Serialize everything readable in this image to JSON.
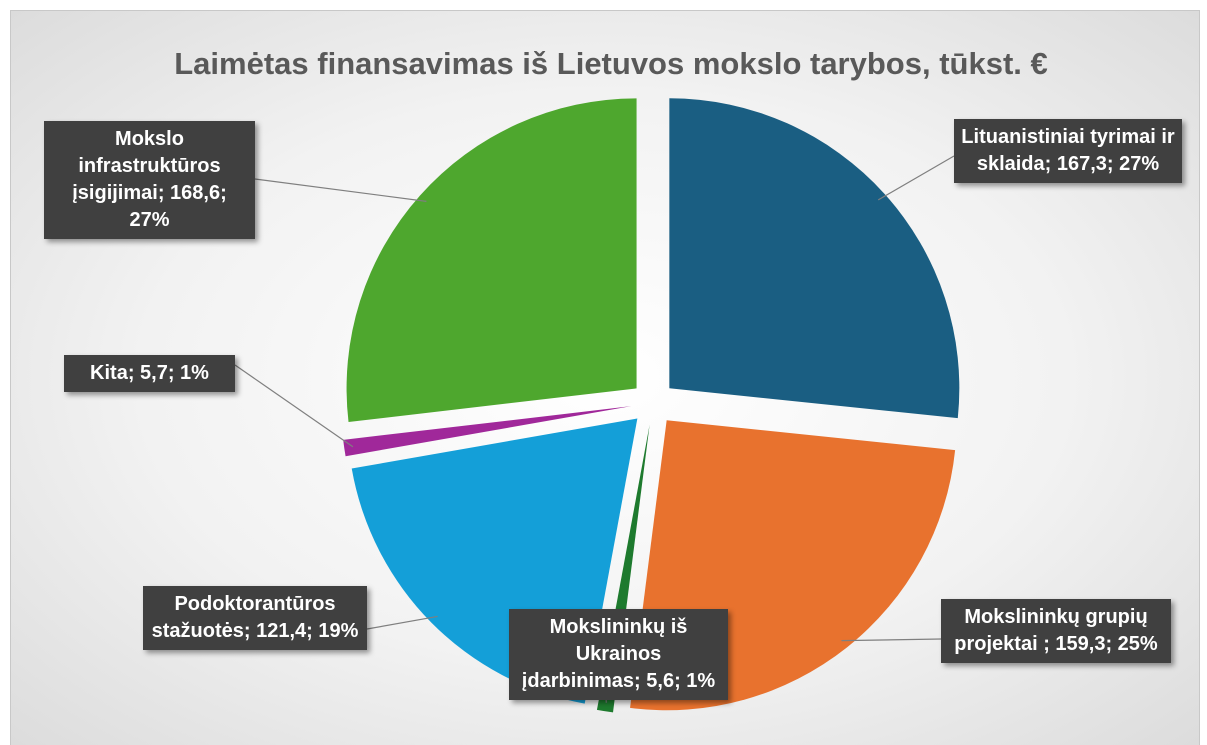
{
  "chart_data": {
    "type": "pie",
    "title": "Laimėtas finansavimas iš Lietuvos mokslo tarybos, tūkst. €",
    "values": [
      167.3,
      159.3,
      5.6,
      121.4,
      5.7,
      168.6
    ],
    "value_labels": [
      "Lituanistiniai tyrimai ir sklaida; 167,3; 27%",
      "Mokslininkų grupių projektai ; 159,3; 25%",
      "Mokslininkų iš Ukrainos įdarbinimas; 5,6; 1%",
      "Podoktorantūros stažuotės; 121,4; 19%",
      "Kita; 5,7; 1%",
      "Mokslo infrastruktūros įsigijimai; 168,6; 27%"
    ],
    "colors": [
      "#1a5e82",
      "#e8722e",
      "#1e7a2e",
      "#149fd8",
      "#a0289a",
      "#4ea72e"
    ]
  }
}
